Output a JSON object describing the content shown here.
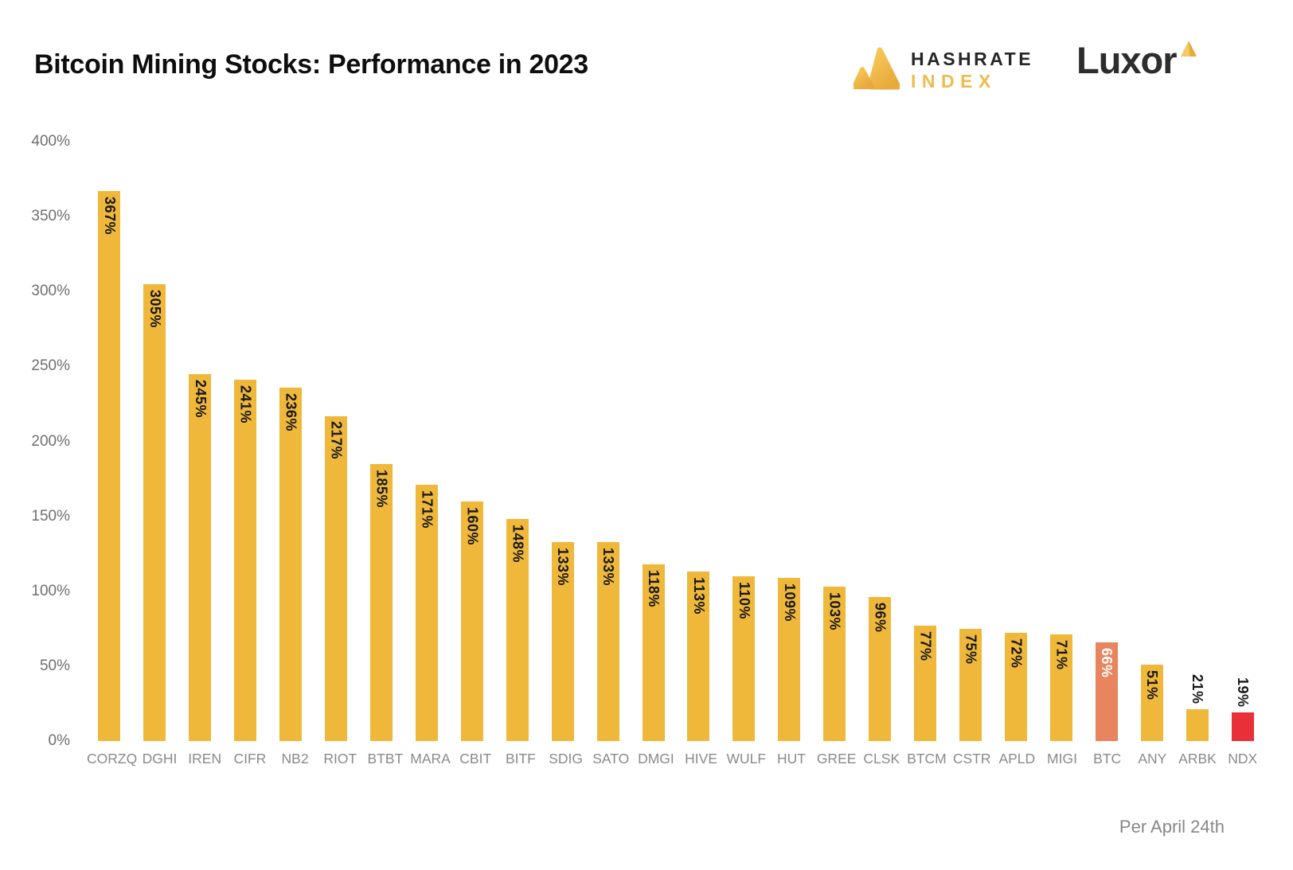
{
  "header": {
    "title": "Bitcoin Mining Stocks: Performance in 2023",
    "hashrate_logo": {
      "line1": "HASHRATE",
      "line2": "INDEX"
    },
    "luxor_logo": {
      "text": "Luxor"
    }
  },
  "footer": {
    "note": "Per April 24th"
  },
  "colors": {
    "bar_default": "#EFB83B",
    "value_label": "#161616",
    "gold_light": "#F6CB5C",
    "gold_dark": "#E9A93B",
    "axis_y_text": "#6f6f6f",
    "axis_x_text": "#8a8a8a"
  },
  "chart_data": {
    "type": "bar",
    "title": "Bitcoin Mining Stocks: Performance in 2023",
    "xlabel": "",
    "ylabel": "",
    "unit": "%",
    "ylim": [
      0,
      400
    ],
    "yticks": [
      "400%",
      "350%",
      "300%",
      "250%",
      "200%",
      "150%",
      "100%",
      "50%",
      "0%"
    ],
    "grid": false,
    "annotation": "Per April 24th",
    "categories": [
      "CORZQ",
      "DGHI",
      "IREN",
      "CIFR",
      "NB2",
      "RIOT",
      "BTBT",
      "MARA",
      "CBIT",
      "BITF",
      "SDIG",
      "SATO",
      "DMGI",
      "HIVE",
      "WULF",
      "HUT",
      "GREE",
      "CLSK",
      "BTCM",
      "CSTR",
      "APLD",
      "MIGI",
      "BTC",
      "ANY",
      "ARBK",
      "NDX"
    ],
    "values": [
      367,
      305,
      245,
      241,
      236,
      217,
      185,
      171,
      160,
      148,
      133,
      133,
      118,
      113,
      110,
      109,
      103,
      96,
      77,
      75,
      72,
      71,
      66,
      51,
      21,
      19
    ],
    "bar_colors": {
      "BTC": "#E8845E",
      "NDX": "#E93038"
    },
    "label_colors": {
      "BTC": "#FFFFFF"
    },
    "value_label_style": "rotated 90deg, inside top of bar; outside above bar when bar too short (ARBK, NDX)"
  }
}
